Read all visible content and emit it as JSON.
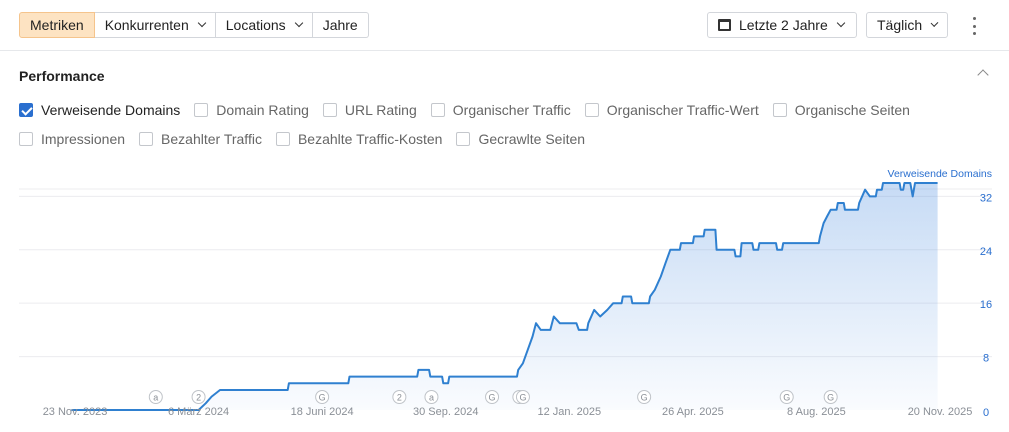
{
  "toolbar": {
    "tabs": [
      {
        "label": "Metriken",
        "active": true
      },
      {
        "label": "Konkurrenten",
        "dropdown": true
      },
      {
        "label": "Locations",
        "dropdown": true
      },
      {
        "label": "Jahre"
      }
    ],
    "range_label": "Letzte 2 Jahre",
    "interval_label": "Täglich"
  },
  "section": {
    "title": "Performance",
    "metrics_row1": [
      {
        "label": "Verweisende Domains",
        "checked": true
      },
      {
        "label": "Domain Rating",
        "checked": false
      },
      {
        "label": "URL Rating",
        "checked": false
      },
      {
        "label": "Organischer Traffic",
        "checked": false
      },
      {
        "label": "Organischer Traffic-Wert",
        "checked": false
      },
      {
        "label": "Organische Seiten",
        "checked": false
      }
    ],
    "metrics_row2": [
      {
        "label": "Impressionen",
        "checked": false
      },
      {
        "label": "Bezahlter Traffic",
        "checked": false
      },
      {
        "label": "Bezahlte Traffic-Kosten",
        "checked": false
      },
      {
        "label": "Gecrawlte Seiten",
        "checked": false
      }
    ]
  },
  "colors": {
    "line": "#2f80d0",
    "axis_text": "#2a6fcf",
    "accent_tab": "#fde3c2"
  },
  "chart_data": {
    "type": "area",
    "series": [
      {
        "name": "Verweisende Domains",
        "points": [
          [
            "2023-11-20",
            0
          ],
          [
            "2024-03-06",
            0
          ],
          [
            "2024-03-12",
            1
          ],
          [
            "2024-03-17",
            2
          ],
          [
            "2024-03-24",
            3
          ],
          [
            "2024-05-20",
            3
          ],
          [
            "2024-05-21",
            4
          ],
          [
            "2024-07-10",
            4
          ],
          [
            "2024-07-11",
            5
          ],
          [
            "2024-09-06",
            5
          ],
          [
            "2024-09-07",
            6
          ],
          [
            "2024-09-16",
            6
          ],
          [
            "2024-09-17",
            5
          ],
          [
            "2024-09-27",
            5
          ],
          [
            "2024-09-28",
            4
          ],
          [
            "2024-10-02",
            4
          ],
          [
            "2024-10-03",
            5
          ],
          [
            "2024-11-29",
            5
          ],
          [
            "2024-11-30",
            6
          ],
          [
            "2024-12-04",
            7
          ],
          [
            "2024-12-08",
            9
          ],
          [
            "2024-12-12",
            11
          ],
          [
            "2024-12-15",
            13
          ],
          [
            "2024-12-19",
            12
          ],
          [
            "2024-12-27",
            12
          ],
          [
            "2024-12-30",
            14
          ],
          [
            "2025-01-04",
            13
          ],
          [
            "2025-01-18",
            13
          ],
          [
            "2025-01-20",
            12
          ],
          [
            "2025-01-27",
            12
          ],
          [
            "2025-01-28",
            13
          ],
          [
            "2025-02-02",
            15
          ],
          [
            "2025-02-07",
            14
          ],
          [
            "2025-02-13",
            15
          ],
          [
            "2025-02-18",
            16
          ],
          [
            "2025-02-25",
            16
          ],
          [
            "2025-02-26",
            17
          ],
          [
            "2025-03-05",
            17
          ],
          [
            "2025-03-06",
            16
          ],
          [
            "2025-03-20",
            16
          ],
          [
            "2025-03-21",
            17
          ],
          [
            "2025-03-25",
            18
          ],
          [
            "2025-03-30",
            20
          ],
          [
            "2025-04-03",
            22
          ],
          [
            "2025-04-07",
            24
          ],
          [
            "2025-04-15",
            24
          ],
          [
            "2025-04-16",
            25
          ],
          [
            "2025-04-26",
            25
          ],
          [
            "2025-04-27",
            26
          ],
          [
            "2025-05-05",
            26
          ],
          [
            "2025-05-06",
            27
          ],
          [
            "2025-05-15",
            27
          ],
          [
            "2025-05-16",
            24
          ],
          [
            "2025-05-31",
            24
          ],
          [
            "2025-06-01",
            23
          ],
          [
            "2025-06-05",
            23
          ],
          [
            "2025-06-06",
            25
          ],
          [
            "2025-06-15",
            25
          ],
          [
            "2025-06-16",
            24
          ],
          [
            "2025-06-20",
            24
          ],
          [
            "2025-06-21",
            25
          ],
          [
            "2025-07-05",
            25
          ],
          [
            "2025-07-06",
            24
          ],
          [
            "2025-07-10",
            24
          ],
          [
            "2025-07-11",
            25
          ],
          [
            "2025-08-10",
            25
          ],
          [
            "2025-08-11",
            26
          ],
          [
            "2025-08-14",
            28
          ],
          [
            "2025-08-17",
            29
          ],
          [
            "2025-08-20",
            30
          ],
          [
            "2025-08-25",
            30
          ],
          [
            "2025-08-26",
            31
          ],
          [
            "2025-08-31",
            31
          ],
          [
            "2025-09-01",
            30
          ],
          [
            "2025-09-12",
            30
          ],
          [
            "2025-09-13",
            31
          ],
          [
            "2025-09-18",
            33
          ],
          [
            "2025-09-22",
            32
          ],
          [
            "2025-09-27",
            32
          ],
          [
            "2025-09-28",
            33
          ],
          [
            "2025-10-02",
            33
          ],
          [
            "2025-10-03",
            34
          ],
          [
            "2025-10-17",
            34
          ],
          [
            "2025-10-18",
            33
          ],
          [
            "2025-10-20",
            33
          ],
          [
            "2025-10-21",
            34
          ],
          [
            "2025-10-26",
            34
          ],
          [
            "2025-10-28",
            32
          ],
          [
            "2025-10-30",
            34
          ],
          [
            "2025-11-18",
            34
          ]
        ]
      }
    ],
    "x_ticks": [
      "23 Nov. 2023",
      "6 März 2024",
      "18 Juni 2024",
      "30 Sep. 2024",
      "12 Jan. 2025",
      "26 Apr. 2025",
      "8 Aug. 2025",
      "20 Nov. 2025"
    ],
    "x_tick_dates": [
      "2023-11-23",
      "2024-03-06",
      "2024-06-18",
      "2024-09-30",
      "2025-01-12",
      "2025-04-26",
      "2025-08-08",
      "2025-11-20"
    ],
    "y_ticks": [
      0,
      8,
      16,
      24,
      32
    ],
    "ylim": [
      0,
      34
    ],
    "y_axis_label": "Verweisende Domains",
    "grid": true,
    "annotations": [
      {
        "date": "2024-01-30",
        "label": "a"
      },
      {
        "date": "2024-03-06",
        "label": "2"
      },
      {
        "date": "2024-06-18",
        "label": "G"
      },
      {
        "date": "2024-08-22",
        "label": "2"
      },
      {
        "date": "2024-09-18",
        "label": "a"
      },
      {
        "date": "2024-11-08",
        "label": "G"
      },
      {
        "date": "2024-12-01",
        "label": "G"
      },
      {
        "date": "2024-12-04",
        "label": "G"
      },
      {
        "date": "2025-03-16",
        "label": "G"
      },
      {
        "date": "2025-07-14",
        "label": "G"
      },
      {
        "date": "2025-08-20",
        "label": "G"
      }
    ]
  }
}
